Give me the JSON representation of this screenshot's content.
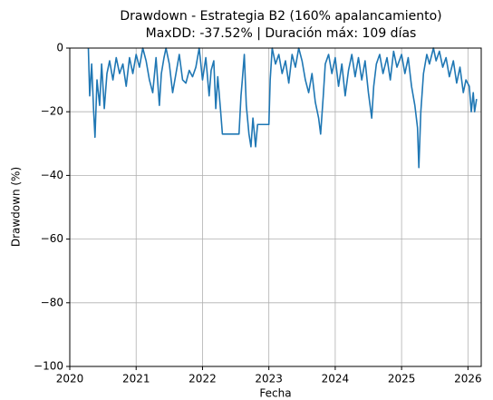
{
  "chart_data": {
    "type": "line",
    "title": "Drawdown - Estrategia B2 (160% apalancamiento)",
    "subtitle": "MaxDD: -37.52% | Duración máx: 109 días",
    "xlabel": "Fecha",
    "ylabel": "Drawdown (%)",
    "color": "#1f77b4",
    "grid": true,
    "xlim": [
      2020,
      2026.2
    ],
    "ylim": [
      -100,
      0
    ],
    "xticks": [
      2020,
      2021,
      2022,
      2023,
      2024,
      2025,
      2026
    ],
    "yticks": [
      {
        "value": -100,
        "label": "−100"
      },
      {
        "value": -80,
        "label": "−80"
      },
      {
        "value": -60,
        "label": "−60"
      },
      {
        "value": -40,
        "label": "−40"
      },
      {
        "value": -20,
        "label": "−20"
      },
      0
    ],
    "x": [
      2020.28,
      2020.3,
      2020.33,
      2020.36,
      2020.38,
      2020.41,
      2020.45,
      2020.48,
      2020.52,
      2020.56,
      2020.6,
      2020.65,
      2020.7,
      2020.75,
      2020.8,
      2020.85,
      2020.9,
      2020.95,
      2021.0,
      2021.05,
      2021.1,
      2021.15,
      2021.2,
      2021.25,
      2021.3,
      2021.35,
      2021.38,
      2021.42,
      2021.45,
      2021.5,
      2021.55,
      2021.6,
      2021.65,
      2021.7,
      2021.75,
      2021.8,
      2021.85,
      2021.9,
      2021.95,
      2022.0,
      2022.05,
      2022.1,
      2022.13,
      2022.17,
      2022.2,
      2022.23,
      2022.27,
      2022.3,
      2022.55,
      2022.58,
      2022.6,
      2022.63,
      2022.66,
      2022.7,
      2022.73,
      2022.76,
      2022.8,
      2022.83,
      2022.9,
      2023.0,
      2023.02,
      2023.05,
      2023.1,
      2023.15,
      2023.2,
      2023.25,
      2023.3,
      2023.35,
      2023.4,
      2023.45,
      2023.5,
      2023.55,
      2023.6,
      2023.65,
      2023.7,
      2023.75,
      2023.78,
      2023.82,
      2023.85,
      2023.9,
      2023.95,
      2024.0,
      2024.05,
      2024.1,
      2024.15,
      2024.2,
      2024.25,
      2024.3,
      2024.35,
      2024.4,
      2024.45,
      2024.5,
      2024.55,
      2024.58,
      2024.62,
      2024.67,
      2024.72,
      2024.78,
      2024.83,
      2024.88,
      2024.93,
      2025.0,
      2025.05,
      2025.1,
      2025.15,
      2025.2,
      2025.24,
      2025.26,
      2025.29,
      2025.33,
      2025.38,
      2025.42,
      2025.48,
      2025.52,
      2025.57,
      2025.62,
      2025.67,
      2025.72,
      2025.78,
      2025.83,
      2025.88,
      2025.93,
      2025.97,
      2026.02,
      2026.05,
      2026.08,
      2026.1,
      2026.13
    ],
    "values": [
      0,
      -15,
      -5,
      -20,
      -28,
      -10,
      -18,
      -5,
      -19,
      -8,
      -4,
      -10,
      -3,
      -8,
      -5,
      -12,
      -3,
      -8,
      -2,
      -6,
      0,
      -4,
      -10,
      -14,
      -3,
      -18,
      -8,
      -3,
      0,
      -5,
      -14,
      -8,
      -2,
      -10,
      -11,
      -7,
      -9,
      -6,
      0,
      -10,
      -3,
      -15,
      -7,
      -4,
      -19,
      -9,
      -19,
      -27,
      -27,
      -15,
      -10,
      -2,
      -18,
      -27,
      -31,
      -22,
      -31,
      -24,
      -24,
      -24,
      -10,
      0,
      -5,
      -2,
      -8,
      -4,
      -11,
      -2,
      -6,
      0,
      -4,
      -10,
      -14,
      -8,
      -17,
      -22,
      -27,
      -15,
      -5,
      -2,
      -8,
      -3,
      -12,
      -5,
      -15,
      -7,
      -2,
      -9,
      -3,
      -10,
      -4,
      -14,
      -22,
      -12,
      -5,
      -2,
      -8,
      -3,
      -10,
      -1,
      -6,
      -2,
      -8,
      -3,
      -12,
      -18,
      -25,
      -37.52,
      -20,
      -8,
      -2,
      -5,
      0,
      -4,
      -1,
      -6,
      -3,
      -9,
      -4,
      -11,
      -6,
      -14,
      -10,
      -12,
      -20,
      -14,
      -20,
      -16
    ]
  }
}
